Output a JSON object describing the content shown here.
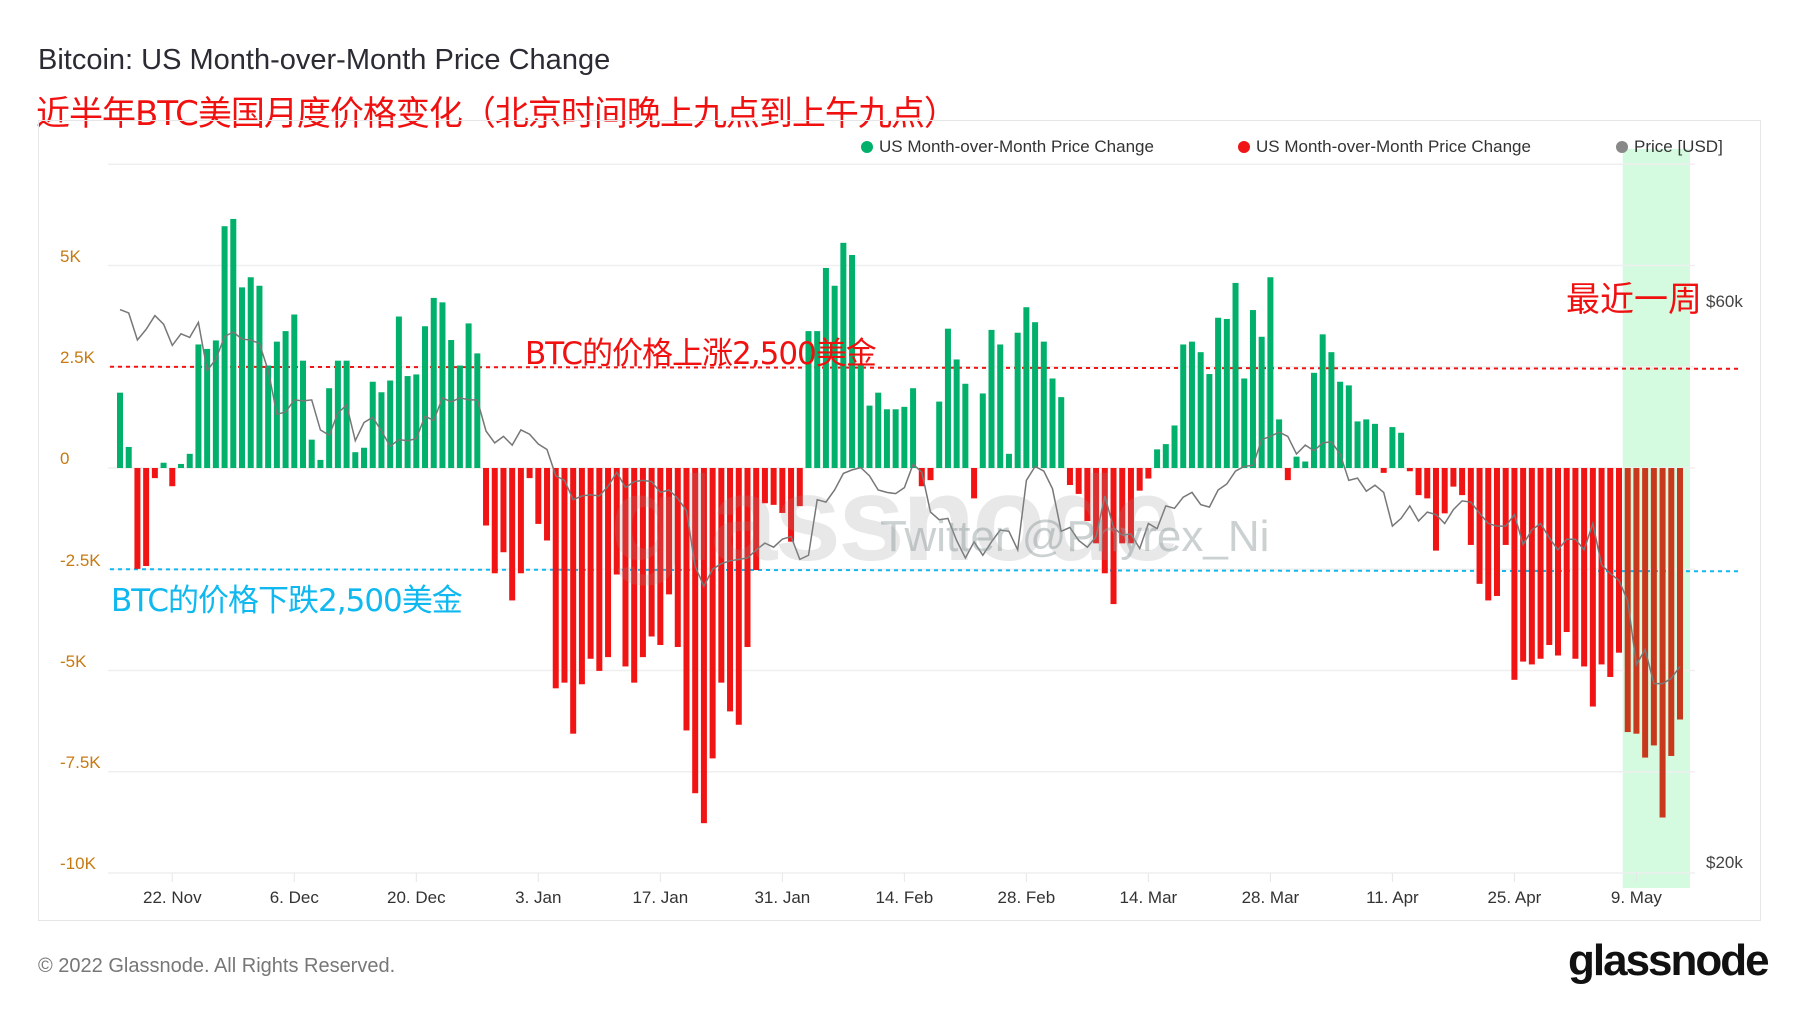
{
  "title": "Bitcoin: US Month-over-Month Price Change",
  "subtitle": "近半年BTC美国月度价格变化（北京时间晚上九点到上午九点）",
  "legend": [
    {
      "label": "US Month-over-Month Price Change",
      "color": "#00b06b"
    },
    {
      "label": "US Month-over-Month Price Change",
      "color": "#f01414"
    },
    {
      "label": "Price [USD]",
      "color": "#888888"
    }
  ],
  "annotations": {
    "up": "BTC的价格上涨2,500美金",
    "down": "BTC的价格下跌2,500美金",
    "recent_week": "最近一周",
    "up_line_color": "#f01414",
    "down_line_color": "#10b8f0"
  },
  "watermarks": {
    "logo": "glassnode",
    "twitter": "Twitter @Phyrex_Ni"
  },
  "footer": {
    "copyright": "© 2022 Glassnode. All Rights Reserved.",
    "brand": "glassnode"
  },
  "chart_data": {
    "type": "bar",
    "title": "Bitcoin: US Month-over-Month Price Change",
    "y_ticks": [
      "5K",
      "2.5K",
      "0",
      "-2.5K",
      "-5K",
      "-7.5K",
      "-10K"
    ],
    "ylim": [
      -10000,
      7500
    ],
    "y2_ticks": [
      "$60k",
      "$20k"
    ],
    "y2_scale": "log",
    "x_ticks": [
      "22. Nov",
      "6. Dec",
      "20. Dec",
      "3. Jan",
      "17. Jan",
      "31. Jan",
      "14. Feb",
      "28. Feb",
      "14. Mar",
      "28. Mar",
      "11. Apr",
      "25. Apr",
      "9. May"
    ],
    "x_tick_dates": [
      "2021-11-22",
      "2021-12-06",
      "2021-12-20",
      "2022-01-03",
      "2022-01-17",
      "2022-01-31",
      "2022-02-14",
      "2022-02-28",
      "2022-03-14",
      "2022-03-28",
      "2022-04-11",
      "2022-04-25",
      "2022-05-09"
    ],
    "reference_lines": [
      2500,
      -2500
    ],
    "grid": true,
    "legend_position": "top-right",
    "colors": {
      "positive": "#00b06b",
      "negative": "#f01414",
      "highlighted_negative": "#c8381c",
      "price": "#777777",
      "highlight_band": "#d4fbe0",
      "axis_label": "#c77a12"
    },
    "highlight": {
      "from": "2022-05-08",
      "to": "2022-05-14",
      "label": "最近一周"
    },
    "x": [
      "2021-11-16",
      "2021-11-17",
      "2021-11-18",
      "2021-11-19",
      "2021-11-20",
      "2021-11-21",
      "2021-11-22",
      "2021-11-23",
      "2021-11-24",
      "2021-11-25",
      "2021-11-26",
      "2021-11-27",
      "2021-11-28",
      "2021-11-29",
      "2021-11-30",
      "2021-12-01",
      "2021-12-02",
      "2021-12-03",
      "2021-12-04",
      "2021-12-05",
      "2021-12-06",
      "2021-12-07",
      "2021-12-08",
      "2021-12-09",
      "2021-12-10",
      "2021-12-11",
      "2021-12-12",
      "2021-12-13",
      "2021-12-14",
      "2021-12-15",
      "2021-12-16",
      "2021-12-17",
      "2021-12-18",
      "2021-12-19",
      "2021-12-20",
      "2021-12-21",
      "2021-12-22",
      "2021-12-23",
      "2021-12-24",
      "2021-12-25",
      "2021-12-26",
      "2021-12-27",
      "2021-12-28",
      "2021-12-29",
      "2021-12-30",
      "2021-12-31",
      "2022-01-01",
      "2022-01-02",
      "2022-01-03",
      "2022-01-04",
      "2022-01-05",
      "2022-01-06",
      "2022-01-07",
      "2022-01-08",
      "2022-01-09",
      "2022-01-10",
      "2022-01-11",
      "2022-01-12",
      "2022-01-13",
      "2022-01-14",
      "2022-01-15",
      "2022-01-16",
      "2022-01-17",
      "2022-01-18",
      "2022-01-19",
      "2022-01-20",
      "2022-01-21",
      "2022-01-22",
      "2022-01-23",
      "2022-01-24",
      "2022-01-25",
      "2022-01-26",
      "2022-01-27",
      "2022-01-28",
      "2022-01-29",
      "2022-01-30",
      "2022-01-31",
      "2022-02-01",
      "2022-02-02",
      "2022-02-03",
      "2022-02-04",
      "2022-02-05",
      "2022-02-06",
      "2022-02-07",
      "2022-02-08",
      "2022-02-09",
      "2022-02-10",
      "2022-02-11",
      "2022-02-12",
      "2022-02-13",
      "2022-02-14",
      "2022-02-15",
      "2022-02-16",
      "2022-02-17",
      "2022-02-18",
      "2022-02-19",
      "2022-02-20",
      "2022-02-21",
      "2022-02-22",
      "2022-02-23",
      "2022-02-24",
      "2022-02-25",
      "2022-02-26",
      "2022-02-27",
      "2022-02-28",
      "2022-03-01",
      "2022-03-02",
      "2022-03-03",
      "2022-03-04",
      "2022-03-05",
      "2022-03-06",
      "2022-03-07",
      "2022-03-08",
      "2022-03-09",
      "2022-03-10",
      "2022-03-11",
      "2022-03-12",
      "2022-03-13",
      "2022-03-14",
      "2022-03-15",
      "2022-03-16",
      "2022-03-17",
      "2022-03-18",
      "2022-03-19",
      "2022-03-20",
      "2022-03-21",
      "2022-03-22",
      "2022-03-23",
      "2022-03-24",
      "2022-03-25",
      "2022-03-26",
      "2022-03-27",
      "2022-03-28",
      "2022-03-29",
      "2022-03-30",
      "2022-03-31",
      "2022-04-01",
      "2022-04-02",
      "2022-04-03",
      "2022-04-04",
      "2022-04-05",
      "2022-04-06",
      "2022-04-07",
      "2022-04-08",
      "2022-04-09",
      "2022-04-10",
      "2022-04-11",
      "2022-04-12",
      "2022-04-13",
      "2022-04-14",
      "2022-04-15",
      "2022-04-16",
      "2022-04-17",
      "2022-04-18",
      "2022-04-19",
      "2022-04-20",
      "2022-04-21",
      "2022-04-22",
      "2022-04-23",
      "2022-04-24",
      "2022-04-25",
      "2022-04-26",
      "2022-04-27",
      "2022-04-28",
      "2022-04-29",
      "2022-04-30",
      "2022-05-01",
      "2022-05-02",
      "2022-05-03",
      "2022-05-04",
      "2022-05-05",
      "2022-05-06",
      "2022-05-07",
      "2022-05-08",
      "2022-05-09",
      "2022-05-10",
      "2022-05-11",
      "2022-05-12",
      "2022-05-13",
      "2022-05-14"
    ],
    "series": [
      {
        "name": "US Month-over-Month Price Change",
        "unit": "USD",
        "values": [
          1860,
          520,
          -2490,
          -2420,
          -250,
          130,
          -450,
          100,
          350,
          3050,
          2940,
          3150,
          5970,
          6150,
          4460,
          4710,
          4500,
          2530,
          3120,
          3380,
          3790,
          2650,
          700,
          200,
          1970,
          2650,
          2650,
          390,
          500,
          2130,
          1870,
          2160,
          3740,
          2270,
          2310,
          3500,
          4200,
          4090,
          3160,
          2530,
          3570,
          2830,
          -1420,
          -2600,
          -2080,
          -3270,
          -2600,
          -250,
          -1380,
          -1790,
          -5440,
          -5300,
          -6560,
          -5340,
          -4710,
          -5010,
          -4670,
          -2630,
          -4900,
          -5300,
          -4670,
          -4160,
          -4370,
          -3120,
          -4420,
          -6480,
          -8030,
          -8770,
          -7170,
          -5300,
          -6010,
          -6340,
          -4420,
          -2520,
          -870,
          -910,
          -1110,
          -1820,
          -940,
          3380,
          3380,
          4940,
          4500,
          5560,
          5260,
          2530,
          1540,
          1860,
          1450,
          1450,
          1510,
          1970,
          -450,
          -300,
          1640,
          3440,
          2680,
          2080,
          -750,
          1840,
          3410,
          3050,
          350,
          3340,
          3970,
          3600,
          3120,
          2210,
          1750,
          -420,
          -640,
          -1310,
          -1860,
          -2600,
          -3360,
          -1860,
          -1860,
          -560,
          -260,
          460,
          590,
          1050,
          3050,
          3120,
          2860,
          2320,
          3710,
          3680,
          4570,
          2210,
          3900,
          3240,
          4710,
          1200,
          -300,
          280,
          160,
          2350,
          3300,
          2860,
          2130,
          2040,
          1150,
          1200,
          1090,
          -120,
          1010,
          870,
          -80,
          -670,
          -750,
          -2040,
          -1120,
          -460,
          -670,
          -1900,
          -2860,
          -3270,
          -3160,
          -1900,
          -5230,
          -4780,
          -4850,
          -4710,
          -4370,
          -4630,
          -4050,
          -4710,
          -4900,
          -5890,
          -4850,
          -5160,
          -4560,
          -6520,
          -6560,
          -7150,
          -6850,
          -8630,
          -7110,
          -6210
        ]
      },
      {
        "name": "Price [USD]",
        "unit": "USD",
        "values": [
          60400,
          60000,
          56900,
          58100,
          59700,
          58700,
          56300,
          57600,
          57200,
          58900,
          53600,
          54800,
          57300,
          57800,
          57000,
          56900,
          56500,
          53600,
          49200,
          49400,
          50600,
          50500,
          50600,
          47700,
          47200,
          49300,
          50100,
          46700,
          48400,
          48900,
          47600,
          46200,
          46800,
          46700,
          46900,
          49000,
          48600,
          50800,
          50400,
          50800,
          50600,
          50600,
          47600,
          46500,
          47100,
          46300,
          47700,
          47300,
          46400,
          45900,
          43600,
          43200,
          41600,
          41900,
          42000,
          41900,
          42700,
          43900,
          42600,
          43100,
          43200,
          43100,
          42200,
          42400,
          41700,
          40700,
          36500,
          35100,
          36300,
          36700,
          36900,
          37000,
          37100,
          37700,
          38200,
          37900,
          38500,
          38700,
          37000,
          37300,
          41600,
          41400,
          42400,
          43800,
          44100,
          44300,
          43600,
          42400,
          42200,
          42100,
          42600,
          44600,
          43900,
          40600,
          40000,
          40100,
          38400,
          37100,
          38300,
          37300,
          38300,
          39200,
          39100,
          37700,
          43200,
          44400,
          44000,
          42500,
          39100,
          39400,
          38400,
          37900,
          38700,
          41900,
          39400,
          38800,
          38900,
          37800,
          39700,
          39300,
          41100,
          40900,
          41800,
          42200,
          41200,
          41000,
          42400,
          42900,
          44000,
          44400,
          44500,
          46800,
          47100,
          47500,
          47100,
          45500,
          46300,
          45800,
          46500,
          46600,
          45500,
          43200,
          43400,
          42300,
          42800,
          42200,
          39500,
          40100,
          41100,
          39900,
          40600,
          40400,
          39700,
          40800,
          41500,
          41400,
          40500,
          39700,
          39500,
          39500,
          40400,
          38100,
          39200,
          39700,
          38600,
          37700,
          38500,
          38500,
          37700,
          39700,
          36600,
          36000,
          35500,
          34100,
          30100,
          31000,
          29000,
          29000,
          29300,
          30000
        ]
      }
    ]
  }
}
